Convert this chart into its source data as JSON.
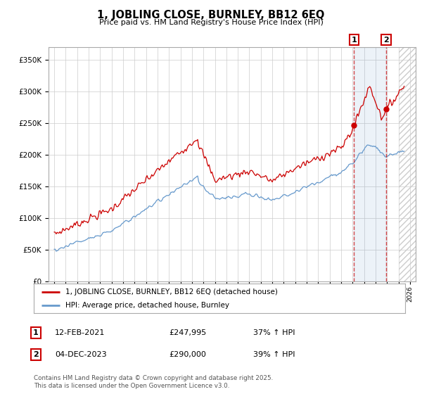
{
  "title": "1, JOBLING CLOSE, BURNLEY, BB12 6EQ",
  "subtitle": "Price paid vs. HM Land Registry's House Price Index (HPI)",
  "legend_line1": "1, JOBLING CLOSE, BURNLEY, BB12 6EQ (detached house)",
  "legend_line2": "HPI: Average price, detached house, Burnley",
  "footnote": "Contains HM Land Registry data © Crown copyright and database right 2025.\nThis data is licensed under the Open Government Licence v3.0.",
  "sale1_label": "1",
  "sale1_date": "12-FEB-2021",
  "sale1_price": "£247,995",
  "sale1_hpi": "37% ↑ HPI",
  "sale2_label": "2",
  "sale2_date": "04-DEC-2023",
  "sale2_price": "£290,000",
  "sale2_hpi": "39% ↑ HPI",
  "line_color_red": "#cc0000",
  "line_color_blue": "#6699cc",
  "dot_color_red": "#cc0000",
  "background_color": "#ffffff",
  "plot_bg_color": "#ffffff",
  "grid_color": "#cccccc",
  "ylim": [
    0,
    370000
  ],
  "yticks": [
    0,
    50000,
    100000,
    150000,
    200000,
    250000,
    300000,
    350000
  ],
  "sale1_x": 2021.12,
  "sale2_x": 2023.92,
  "vline1_x": 2021.12,
  "vline2_x": 2023.92,
  "sale1_y": 247995,
  "sale2_y": 290000,
  "xmin": 1994.5,
  "xmax": 2026.5,
  "hatch_start": 2025.0
}
